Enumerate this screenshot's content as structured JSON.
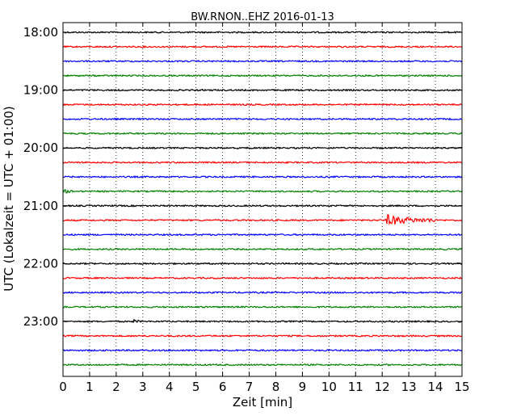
{
  "chart_data": {
    "type": "line",
    "title": "BW.RNON..EHZ 2016-01-13",
    "xlabel": "Zeit  [min]",
    "ylabel": "UTC (Lokalzeit = UTC + 01:00)",
    "xlim": [
      0,
      15
    ],
    "x_ticks": [
      "0",
      "1",
      "2",
      "3",
      "4",
      "5",
      "6",
      "7",
      "8",
      "9",
      "10",
      "11",
      "12",
      "13",
      "14",
      "15"
    ],
    "y_tick_labels": [
      "18:00",
      "19:00",
      "20:00",
      "21:00",
      "22:00",
      "23:00"
    ],
    "grid": true,
    "trace_colors": [
      "#000000",
      "#ff0000",
      "#0000ff",
      "#008000"
    ],
    "trace_start_times": [
      "18:00",
      "18:15",
      "18:30",
      "18:45",
      "19:00",
      "19:15",
      "19:30",
      "19:45",
      "20:00",
      "20:15",
      "20:30",
      "20:45",
      "21:00",
      "21:15",
      "21:30",
      "21:45",
      "22:00",
      "22:15",
      "22:30",
      "22:45",
      "23:00",
      "23:15",
      "23:30",
      "23:45"
    ],
    "events": [
      {
        "trace": "20:45",
        "start_min": 0.0,
        "end_min": 0.4,
        "amplitude": "small"
      },
      {
        "trace": "21:15",
        "start_min": 12.1,
        "end_min": 14.0,
        "amplitude": "large"
      },
      {
        "trace": "23:00",
        "start_min": 2.6,
        "end_min": 2.9,
        "amplitude": "small"
      }
    ]
  }
}
